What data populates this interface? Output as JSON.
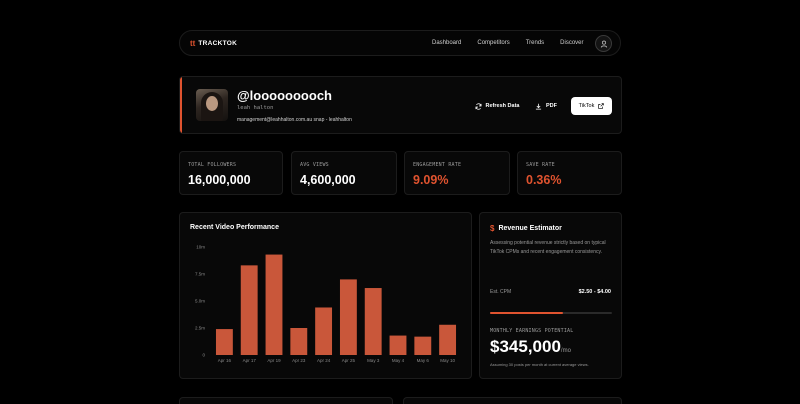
{
  "nav": {
    "logo_mark": "tt",
    "logo_text": "TRACKTOK",
    "links": [
      "Dashboard",
      "Competitors",
      "Trends",
      "Discover"
    ]
  },
  "profile": {
    "handle": "@looooooooch",
    "name": "leah halton",
    "contact": "management@leahhalton.com.au snap - leahhalton",
    "buttons": {
      "refresh": "Refresh Data",
      "pdf": "PDF",
      "tiktok": "TikTok"
    }
  },
  "stats": [
    {
      "label": "TOTAL FOLLOWERS",
      "value": "16,000,000",
      "accent": false
    },
    {
      "label": "AVG VIEWS",
      "value": "4,600,000",
      "accent": false
    },
    {
      "label": "ENGAGEMENT RATE",
      "value": "9.09%",
      "accent": true
    },
    {
      "label": "SAVE RATE",
      "value": "0.36%",
      "accent": true
    }
  ],
  "chart": {
    "title": "Recent Video Performance"
  },
  "chart_data": {
    "type": "bar",
    "title": "Recent Video Performance",
    "categories": [
      "Apr 16",
      "Apr 17",
      "Apr 19",
      "Apr 23",
      "Apr 24",
      "Apr 25",
      "May 3",
      "May 4",
      "May 6",
      "May 10"
    ],
    "values": [
      2.4,
      8.3,
      9.3,
      2.5,
      4.4,
      7.0,
      6.2,
      1.8,
      1.7,
      2.8
    ],
    "ytick_labels": [
      "0",
      "2.5m",
      "5.0m",
      "7.5m",
      "10m"
    ],
    "ytick_values": [
      0,
      2.5,
      5.0,
      7.5,
      10
    ],
    "ylim": [
      0,
      10
    ],
    "color": "#c9573a",
    "grid": false
  },
  "revenue": {
    "title": "Revenue Estimator",
    "description": "Assessing potential revenue strictly based on typical TikTok CPMs and recent engagement consistency.",
    "cpm_label": "Est. CPM",
    "cpm_value": "$2.50 - $4.00",
    "cpm_fill": 0.6,
    "earnings_label": "MONTHLY EARNINGS POTENTIAL",
    "earnings_value": "$345,000",
    "earnings_unit": "/mo",
    "note": "Assuming 30 posts per month at current average views."
  },
  "colors": {
    "accent": "#e0532f",
    "bar": "#c9573a",
    "background": "#000000"
  }
}
